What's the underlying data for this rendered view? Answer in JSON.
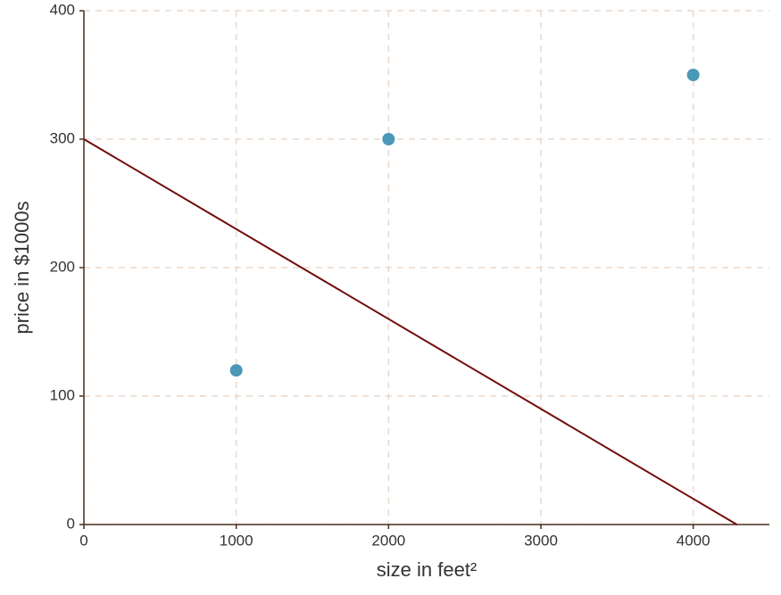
{
  "chart_data": {
    "type": "scatter",
    "xlabel": "size in feet²",
    "ylabel": "price in $1000s",
    "xlim": [
      0,
      4500
    ],
    "ylim": [
      0,
      400
    ],
    "xticks": [
      0,
      1000,
      2000,
      3000,
      4000
    ],
    "yticks": [
      0,
      100,
      200,
      300,
      400
    ],
    "grid": true,
    "series": [
      {
        "type": "scatter",
        "color": "#4a98b6",
        "x": [
          1000,
          2000,
          4000
        ],
        "values": [
          120,
          300,
          350
        ]
      },
      {
        "type": "line",
        "color": "#730c0c",
        "x": [
          0,
          4286
        ],
        "values": [
          300,
          0
        ]
      }
    ]
  }
}
